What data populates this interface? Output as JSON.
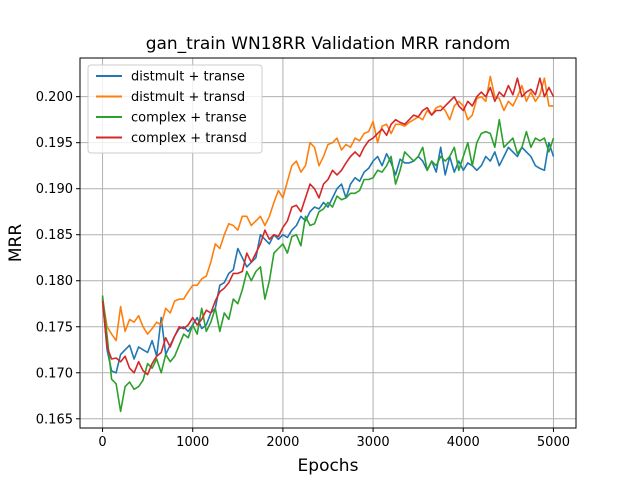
{
  "chart_data": {
    "type": "line",
    "title": "gan_train WN18RR Validation MRR random",
    "xlabel": "Epochs",
    "ylabel": "MRR",
    "xlim": [
      -250,
      5250
    ],
    "ylim": [
      0.164,
      0.2042
    ],
    "xticks": [
      0,
      1000,
      2000,
      3000,
      4000,
      5000
    ],
    "xtick_labels": [
      "0",
      "1000",
      "2000",
      "3000",
      "4000",
      "5000"
    ],
    "yticks": [
      0.165,
      0.17,
      0.175,
      0.18,
      0.185,
      0.19,
      0.195,
      0.2
    ],
    "ytick_labels": [
      "0.165",
      "0.170",
      "0.175",
      "0.180",
      "0.185",
      "0.190",
      "0.195",
      "0.200"
    ],
    "grid": true,
    "legend_position": "top-left",
    "x": [
      0,
      50,
      100,
      150,
      200,
      250,
      300,
      350,
      400,
      450,
      500,
      550,
      600,
      650,
      700,
      750,
      800,
      850,
      900,
      950,
      1000,
      1050,
      1100,
      1150,
      1200,
      1250,
      1300,
      1350,
      1400,
      1450,
      1500,
      1550,
      1600,
      1650,
      1700,
      1750,
      1800,
      1850,
      1900,
      1950,
      2000,
      2050,
      2100,
      2150,
      2200,
      2250,
      2300,
      2350,
      2400,
      2450,
      2500,
      2550,
      2600,
      2650,
      2700,
      2750,
      2800,
      2850,
      2900,
      2950,
      3000,
      3050,
      3100,
      3150,
      3200,
      3250,
      3300,
      3350,
      3400,
      3450,
      3500,
      3550,
      3600,
      3650,
      3700,
      3750,
      3800,
      3850,
      3900,
      3950,
      4000,
      4050,
      4100,
      4150,
      4200,
      4250,
      4300,
      4350,
      4400,
      4450,
      4500,
      4550,
      4600,
      4650,
      4700,
      4750,
      4800,
      4850,
      4900,
      4950,
      5000
    ],
    "series": [
      {
        "name": "distmult + transe",
        "color": "#1f77b4",
        "values": [
          0.1781,
          0.1725,
          0.1702,
          0.17,
          0.172,
          0.1725,
          0.173,
          0.1715,
          0.1728,
          0.1725,
          0.1722,
          0.1735,
          0.1718,
          0.176,
          0.172,
          0.173,
          0.174,
          0.1748,
          0.175,
          0.1745,
          0.1752,
          0.176,
          0.1748,
          0.1752,
          0.1765,
          0.177,
          0.1795,
          0.1798,
          0.1808,
          0.1812,
          0.1835,
          0.1825,
          0.1815,
          0.182,
          0.1825,
          0.185,
          0.1845,
          0.184,
          0.185,
          0.1845,
          0.185,
          0.1847,
          0.1855,
          0.186,
          0.187,
          0.1865,
          0.1875,
          0.188,
          0.1878,
          0.1885,
          0.188,
          0.189,
          0.19,
          0.1905,
          0.189,
          0.1905,
          0.1912,
          0.1908,
          0.1918,
          0.1922,
          0.193,
          0.1935,
          0.1925,
          0.1938,
          0.1928,
          0.1915,
          0.1932,
          0.1928,
          0.1928,
          0.193,
          0.1935,
          0.193,
          0.192,
          0.193,
          0.1918,
          0.1945,
          0.1915,
          0.1935,
          0.1918,
          0.193,
          0.192,
          0.1928,
          0.1925,
          0.192,
          0.1925,
          0.1935,
          0.193,
          0.194,
          0.1925,
          0.1935,
          0.1945,
          0.194,
          0.1935,
          0.1945,
          0.194,
          0.1935,
          0.1925,
          0.1922,
          0.192,
          0.195,
          0.1935
        ]
      },
      {
        "name": "distmult + transd",
        "color": "#ff7f0e",
        "values": [
          0.1781,
          0.175,
          0.1742,
          0.1735,
          0.1772,
          0.1745,
          0.1758,
          0.1755,
          0.1762,
          0.175,
          0.1742,
          0.1748,
          0.1755,
          0.1752,
          0.177,
          0.1765,
          0.1778,
          0.178,
          0.178,
          0.1788,
          0.1795,
          0.1795,
          0.1802,
          0.1805,
          0.182,
          0.184,
          0.1835,
          0.185,
          0.1862,
          0.186,
          0.1855,
          0.187,
          0.187,
          0.186,
          0.1865,
          0.187,
          0.186,
          0.187,
          0.1885,
          0.1898,
          0.189,
          0.1908,
          0.1925,
          0.193,
          0.1918,
          0.1925,
          0.195,
          0.1945,
          0.1925,
          0.1935,
          0.1948,
          0.195,
          0.1955,
          0.1942,
          0.1948,
          0.1945,
          0.1955,
          0.1952,
          0.196,
          0.1962,
          0.1973,
          0.195,
          0.1968,
          0.197,
          0.196,
          0.197,
          0.197,
          0.1968,
          0.1972,
          0.1975,
          0.1978,
          0.1975,
          0.1985,
          0.198,
          0.1988,
          0.199,
          0.1985,
          0.1975,
          0.199,
          0.1995,
          0.199,
          0.1975,
          0.198,
          0.1998,
          0.2,
          0.1995,
          0.2022,
          0.2,
          0.1998,
          0.1985,
          0.1995,
          0.199,
          0.2,
          0.2012,
          0.1995,
          0.2005,
          0.1995,
          0.2002,
          0.202,
          0.199,
          0.199
        ]
      },
      {
        "name": "complex + transe",
        "color": "#2ca02c",
        "values": [
          0.1784,
          0.174,
          0.1693,
          0.1688,
          0.1658,
          0.1685,
          0.169,
          0.1682,
          0.1685,
          0.1692,
          0.171,
          0.1705,
          0.1715,
          0.17,
          0.172,
          0.1712,
          0.1718,
          0.173,
          0.1742,
          0.1738,
          0.1752,
          0.1742,
          0.177,
          0.1745,
          0.1755,
          0.177,
          0.1745,
          0.1765,
          0.1758,
          0.178,
          0.1775,
          0.179,
          0.181,
          0.18,
          0.181,
          0.1815,
          0.178,
          0.18,
          0.183,
          0.1835,
          0.184,
          0.183,
          0.1848,
          0.185,
          0.1838,
          0.187,
          0.186,
          0.1862,
          0.1875,
          0.1878,
          0.1885,
          0.188,
          0.1892,
          0.1888,
          0.189,
          0.1895,
          0.1895,
          0.1898,
          0.191,
          0.191,
          0.1912,
          0.192,
          0.1918,
          0.1925,
          0.1935,
          0.1905,
          0.192,
          0.194,
          0.1935,
          0.193,
          0.1935,
          0.1945,
          0.192,
          0.193,
          0.1925,
          0.1935,
          0.193,
          0.1935,
          0.1945,
          0.192,
          0.1935,
          0.195,
          0.1925,
          0.195,
          0.196,
          0.1962,
          0.196,
          0.1945,
          0.1975,
          0.1945,
          0.195,
          0.1955,
          0.1938,
          0.1945,
          0.1962,
          0.1945,
          0.1955,
          0.1952,
          0.1955,
          0.194,
          0.1955
        ]
      },
      {
        "name": "complex + transd",
        "color": "#d62728",
        "values": [
          0.1778,
          0.1728,
          0.1715,
          0.1716,
          0.1712,
          0.1718,
          0.1705,
          0.17,
          0.1712,
          0.1702,
          0.1698,
          0.171,
          0.1718,
          0.1722,
          0.1738,
          0.1728,
          0.174,
          0.175,
          0.1748,
          0.1752,
          0.176,
          0.1752,
          0.1758,
          0.1768,
          0.1765,
          0.1778,
          0.1788,
          0.1792,
          0.1798,
          0.1808,
          0.1808,
          0.181,
          0.183,
          0.182,
          0.183,
          0.184,
          0.1855,
          0.1845,
          0.185,
          0.1848,
          0.1858,
          0.1865,
          0.188,
          0.1882,
          0.1875,
          0.189,
          0.1905,
          0.19,
          0.189,
          0.1905,
          0.191,
          0.192,
          0.1915,
          0.192,
          0.1928,
          0.1935,
          0.194,
          0.1935,
          0.1945,
          0.1952,
          0.1955,
          0.196,
          0.1965,
          0.1958,
          0.197,
          0.1975,
          0.1972,
          0.197,
          0.1975,
          0.198,
          0.1978,
          0.1985,
          0.1988,
          0.198,
          0.1985,
          0.1985,
          0.199,
          0.1995,
          0.2,
          0.199,
          0.1985,
          0.1995,
          0.199,
          0.2,
          0.2005,
          0.2,
          0.201,
          0.1995,
          0.2005,
          0.2,
          0.2012,
          0.2002,
          0.202,
          0.2,
          0.2005,
          0.2008,
          0.2002,
          0.202,
          0.2,
          0.201,
          0.2
        ]
      }
    ]
  }
}
